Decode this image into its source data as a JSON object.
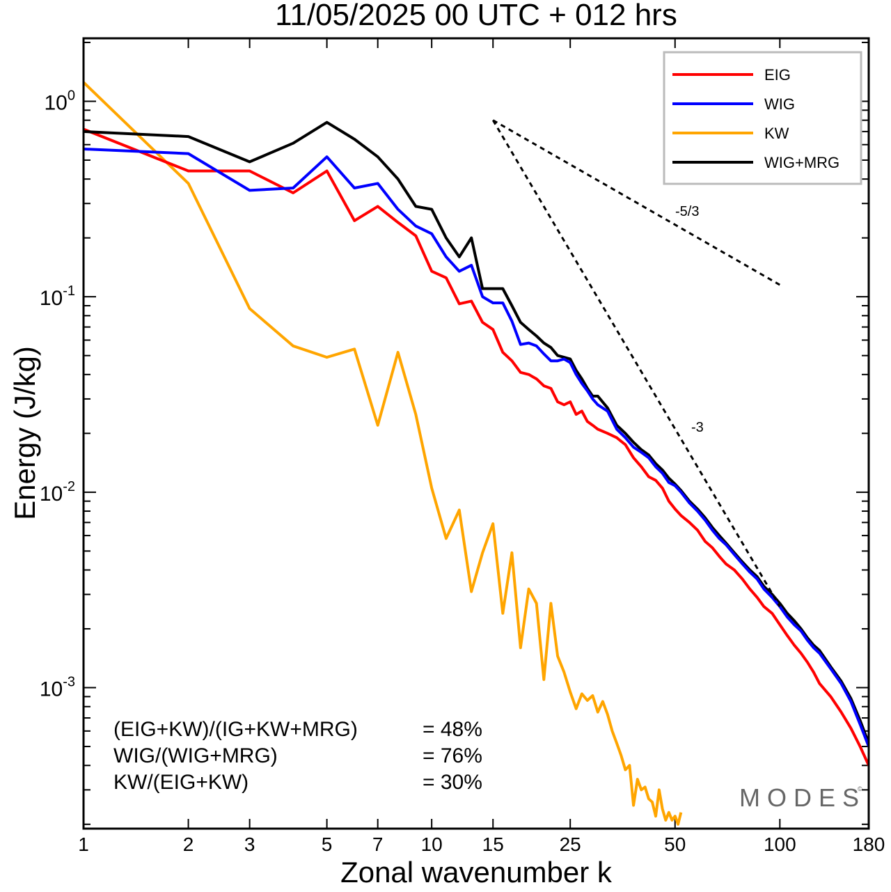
{
  "chart_data": {
    "type": "line",
    "title": "11/05/2025  00 UTC  + 012 hrs",
    "xlabel": "Zonal wavenumber k",
    "ylabel": "Energy (J/kg)",
    "xscale": "log",
    "yscale": "log",
    "xlim": [
      1,
      180
    ],
    "ylim": [
      0.00019,
      2.1
    ],
    "xticks": [
      {
        "value": 1,
        "label": "1"
      },
      {
        "value": 2,
        "label": "2"
      },
      {
        "value": 3,
        "label": "3"
      },
      {
        "value": 5,
        "label": "5"
      },
      {
        "value": 7,
        "label": "7"
      },
      {
        "value": 10,
        "label": "10"
      },
      {
        "value": 15,
        "label": "15"
      },
      {
        "value": 25,
        "label": "25"
      },
      {
        "value": 50,
        "label": "50"
      },
      {
        "value": 100,
        "label": "100"
      },
      {
        "value": 180,
        "label": "180"
      }
    ],
    "yticks": [
      {
        "value": 1,
        "base": "10",
        "exp": "0"
      },
      {
        "value": 0.1,
        "base": "10",
        "exp": "-1"
      },
      {
        "value": 0.01,
        "base": "10",
        "exp": "-2"
      },
      {
        "value": 0.001,
        "base": "10",
        "exp": "-3"
      }
    ],
    "legend_position": "top-right",
    "series": [
      {
        "name": "EIG",
        "color": "#ff0000",
        "points": [
          [
            1,
            0.72
          ],
          [
            2,
            0.44
          ],
          [
            3,
            0.44
          ],
          [
            4,
            0.34
          ],
          [
            5,
            0.44
          ],
          [
            6,
            0.245
          ],
          [
            7,
            0.29
          ],
          [
            8,
            0.24
          ],
          [
            9,
            0.205
          ],
          [
            10,
            0.135
          ],
          [
            11,
            0.125
          ],
          [
            12,
            0.092
          ],
          [
            13,
            0.095
          ],
          [
            14,
            0.074
          ],
          [
            15,
            0.068
          ],
          [
            16,
            0.052
          ],
          [
            17,
            0.047
          ],
          [
            18,
            0.041
          ],
          [
            19,
            0.04
          ],
          [
            20,
            0.038
          ],
          [
            21,
            0.035
          ],
          [
            22,
            0.034
          ],
          [
            23,
            0.029
          ],
          [
            24,
            0.028
          ],
          [
            25,
            0.029
          ],
          [
            26,
            0.025
          ],
          [
            27,
            0.026
          ],
          [
            28,
            0.023
          ],
          [
            29,
            0.022
          ],
          [
            30,
            0.021
          ],
          [
            32,
            0.02
          ],
          [
            34,
            0.019
          ],
          [
            36,
            0.0175
          ],
          [
            38,
            0.015
          ],
          [
            40,
            0.0135
          ],
          [
            42,
            0.012
          ],
          [
            44,
            0.0115
          ],
          [
            46,
            0.0105
          ],
          [
            48,
            0.009
          ],
          [
            50,
            0.0082
          ],
          [
            52,
            0.0076
          ],
          [
            55,
            0.007
          ],
          [
            58,
            0.0064
          ],
          [
            61,
            0.0056
          ],
          [
            64,
            0.0052
          ],
          [
            67,
            0.0047
          ],
          [
            70,
            0.0043
          ],
          [
            74,
            0.004
          ],
          [
            78,
            0.0036
          ],
          [
            82,
            0.0032
          ],
          [
            86,
            0.0029
          ],
          [
            90,
            0.0026
          ],
          [
            95,
            0.0024
          ],
          [
            100,
            0.0021
          ],
          [
            105,
            0.00185
          ],
          [
            110,
            0.00165
          ],
          [
            115,
            0.0015
          ],
          [
            120,
            0.00135
          ],
          [
            125,
            0.0012
          ],
          [
            130,
            0.00105
          ],
          [
            140,
            0.0009
          ],
          [
            150,
            0.00075
          ],
          [
            160,
            0.00062
          ],
          [
            170,
            0.0005
          ],
          [
            180,
            0.0004
          ]
        ]
      },
      {
        "name": "WIG",
        "color": "#0000ff",
        "points": [
          [
            1,
            0.57
          ],
          [
            2,
            0.54
          ],
          [
            3,
            0.35
          ],
          [
            4,
            0.36
          ],
          [
            5,
            0.52
          ],
          [
            6,
            0.36
          ],
          [
            7,
            0.38
          ],
          [
            8,
            0.28
          ],
          [
            9,
            0.23
          ],
          [
            10,
            0.21
          ],
          [
            11,
            0.16
          ],
          [
            12,
            0.135
          ],
          [
            13,
            0.145
          ],
          [
            14,
            0.1
          ],
          [
            15,
            0.093
          ],
          [
            16,
            0.093
          ],
          [
            17,
            0.075
          ],
          [
            18,
            0.057
          ],
          [
            19,
            0.058
          ],
          [
            20,
            0.056
          ],
          [
            21,
            0.051
          ],
          [
            22,
            0.047
          ],
          [
            23,
            0.047
          ],
          [
            24,
            0.048
          ],
          [
            25,
            0.046
          ],
          [
            26,
            0.04
          ],
          [
            27,
            0.036
          ],
          [
            28,
            0.033
          ],
          [
            29,
            0.03
          ],
          [
            30,
            0.028
          ],
          [
            32,
            0.026
          ],
          [
            34,
            0.021
          ],
          [
            36,
            0.019
          ],
          [
            38,
            0.017
          ],
          [
            40,
            0.016
          ],
          [
            42,
            0.015
          ],
          [
            44,
            0.0135
          ],
          [
            46,
            0.0125
          ],
          [
            48,
            0.0112
          ],
          [
            50,
            0.0108
          ],
          [
            52,
            0.01
          ],
          [
            55,
            0.0088
          ],
          [
            58,
            0.008
          ],
          [
            61,
            0.0072
          ],
          [
            64,
            0.0064
          ],
          [
            67,
            0.0058
          ],
          [
            70,
            0.0054
          ],
          [
            74,
            0.0048
          ],
          [
            78,
            0.0043
          ],
          [
            82,
            0.0039
          ],
          [
            86,
            0.0036
          ],
          [
            90,
            0.0032
          ],
          [
            95,
            0.0029
          ],
          [
            100,
            0.0026
          ],
          [
            105,
            0.0023
          ],
          [
            110,
            0.0021
          ],
          [
            115,
            0.00195
          ],
          [
            120,
            0.00175
          ],
          [
            125,
            0.0016
          ],
          [
            130,
            0.0015
          ],
          [
            140,
            0.00125
          ],
          [
            150,
            0.00105
          ],
          [
            160,
            0.00085
          ],
          [
            170,
            0.00065
          ],
          [
            180,
            0.0005
          ]
        ]
      },
      {
        "name": "KW",
        "color": "#ffa500",
        "points": [
          [
            1,
            1.25
          ],
          [
            2,
            0.38
          ],
          [
            3,
            0.087
          ],
          [
            4,
            0.056
          ],
          [
            5,
            0.049
          ],
          [
            6,
            0.054
          ],
          [
            7,
            0.022
          ],
          [
            8,
            0.052
          ],
          [
            9,
            0.025
          ],
          [
            10,
            0.0105
          ],
          [
            11,
            0.0058
          ],
          [
            12,
            0.0081
          ],
          [
            13,
            0.0031
          ],
          [
            14,
            0.0049
          ],
          [
            15,
            0.0069
          ],
          [
            16,
            0.0024
          ],
          [
            17,
            0.0049
          ],
          [
            18,
            0.0016
          ],
          [
            19,
            0.0032
          ],
          [
            20,
            0.0027
          ],
          [
            21,
            0.0011
          ],
          [
            22,
            0.0027
          ],
          [
            23,
            0.00145
          ],
          [
            24,
            0.0012
          ],
          [
            25,
            0.00095
          ],
          [
            26,
            0.00078
          ],
          [
            27,
            0.00093
          ],
          [
            28,
            0.00086
          ],
          [
            29,
            0.00091
          ],
          [
            30,
            0.00075
          ],
          [
            31,
            0.00085
          ],
          [
            32,
            0.00073
          ],
          [
            33,
            0.0006
          ],
          [
            34,
            0.00052
          ],
          [
            35,
            0.00045
          ],
          [
            36,
            0.00038
          ],
          [
            37,
            0.0004
          ],
          [
            38,
            0.00025
          ],
          [
            39,
            0.00034
          ],
          [
            40,
            0.0003
          ],
          [
            41,
            0.00031
          ],
          [
            42,
            0.00027
          ],
          [
            43,
            0.00026
          ],
          [
            44,
            0.00022
          ],
          [
            45,
            0.0003
          ],
          [
            46,
            0.00024
          ],
          [
            47,
            0.00021
          ],
          [
            48,
            0.00023
          ],
          [
            49,
            0.00021
          ],
          [
            50,
            0.00022
          ],
          [
            51,
            0.0002
          ],
          [
            52,
            0.00023
          ]
        ]
      },
      {
        "name": "WIG+MRG",
        "color": "#000000",
        "points": [
          [
            1,
            0.7
          ],
          [
            2,
            0.66
          ],
          [
            3,
            0.49
          ],
          [
            4,
            0.61
          ],
          [
            5,
            0.78
          ],
          [
            6,
            0.64
          ],
          [
            7,
            0.52
          ],
          [
            8,
            0.4
          ],
          [
            9,
            0.29
          ],
          [
            10,
            0.28
          ],
          [
            11,
            0.2
          ],
          [
            12,
            0.16
          ],
          [
            13,
            0.2
          ],
          [
            14,
            0.11
          ],
          [
            15,
            0.11
          ],
          [
            16,
            0.11
          ],
          [
            17,
            0.09
          ],
          [
            18,
            0.074
          ],
          [
            19,
            0.068
          ],
          [
            20,
            0.063
          ],
          [
            21,
            0.058
          ],
          [
            22,
            0.055
          ],
          [
            23,
            0.05
          ],
          [
            24,
            0.049
          ],
          [
            25,
            0.048
          ],
          [
            26,
            0.042
          ],
          [
            27,
            0.038
          ],
          [
            28,
            0.034
          ],
          [
            29,
            0.031
          ],
          [
            30,
            0.031
          ],
          [
            32,
            0.027
          ],
          [
            34,
            0.022
          ],
          [
            36,
            0.02
          ],
          [
            38,
            0.018
          ],
          [
            40,
            0.0165
          ],
          [
            42,
            0.0155
          ],
          [
            44,
            0.014
          ],
          [
            46,
            0.013
          ],
          [
            48,
            0.0118
          ],
          [
            50,
            0.011
          ],
          [
            52,
            0.0102
          ],
          [
            55,
            0.009
          ],
          [
            58,
            0.0082
          ],
          [
            61,
            0.0074
          ],
          [
            64,
            0.0066
          ],
          [
            67,
            0.006
          ],
          [
            70,
            0.0055
          ],
          [
            74,
            0.0049
          ],
          [
            78,
            0.0044
          ],
          [
            82,
            0.004
          ],
          [
            86,
            0.0037
          ],
          [
            90,
            0.0033
          ],
          [
            95,
            0.003
          ],
          [
            100,
            0.0027
          ],
          [
            105,
            0.0024
          ],
          [
            110,
            0.0022
          ],
          [
            115,
            0.002
          ],
          [
            120,
            0.0018
          ],
          [
            125,
            0.00165
          ],
          [
            130,
            0.00155
          ],
          [
            140,
            0.00128
          ],
          [
            150,
            0.00108
          ],
          [
            160,
            0.00088
          ],
          [
            170,
            0.00068
          ],
          [
            180,
            0.00052
          ]
        ]
      }
    ],
    "reference_lines": [
      {
        "label": "-5/3",
        "from": [
          15,
          0.8
        ],
        "to": [
          100,
          0.115
        ]
      },
      {
        "label": "-3",
        "from": [
          15,
          0.8
        ],
        "to": [
          100,
          0.0026
        ]
      }
    ],
    "annotations": [
      {
        "text": "(EIG+KW)/(IG+KW+MRG)",
        "value": "= 48%"
      },
      {
        "text": "WIG/(WIG+MRG)",
        "value": "= 76%"
      },
      {
        "text": "KW/(EIG+KW)",
        "value": "= 30%"
      }
    ]
  },
  "watermark": "MODES",
  "watermark_mark": "©"
}
